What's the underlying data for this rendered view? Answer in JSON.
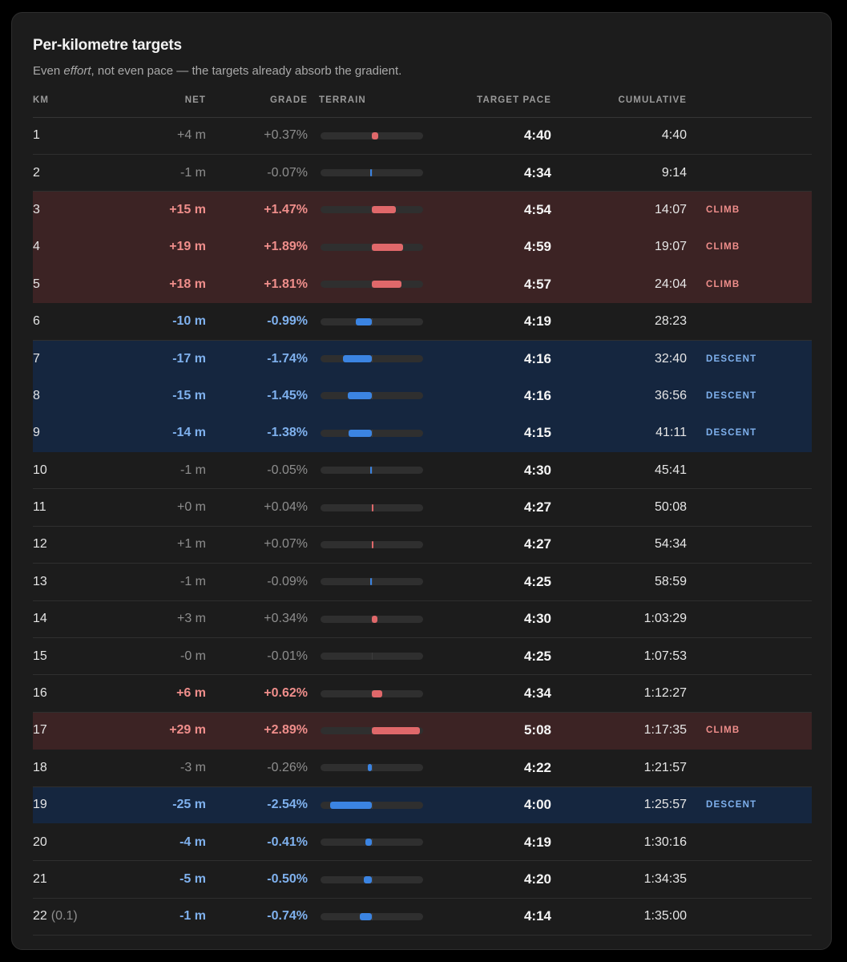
{
  "title": "Per-kilometre targets",
  "subtitle": {
    "before": "Even ",
    "emph": "effort",
    "after": ", not even pace — the targets already absorb the gradient."
  },
  "columns": {
    "km": "KM",
    "net": "NET",
    "grade": "GRADE",
    "terrain": "TERRAIN",
    "pace": "TARGET PACE",
    "cumulative": "CUMULATIVE"
  },
  "colors": {
    "climb_row_bg": "#3c2324",
    "descent_row_bg": "#15263f",
    "climb_bar": "#e0686a",
    "descent_bar": "#3b84e2",
    "climb_text": "#ef8e8b",
    "descent_text": "#7fb1ee"
  },
  "rows": [
    {
      "km": "1",
      "sub": "",
      "net": "+4 m",
      "grade": "+0.37%",
      "grade_value": 0.37,
      "pace": "4:40",
      "cumulative": "4:40",
      "tag": "",
      "kind": "flat"
    },
    {
      "km": "2",
      "sub": "",
      "net": "-1 m",
      "grade": "-0.07%",
      "grade_value": -0.07,
      "pace": "4:34",
      "cumulative": "9:14",
      "tag": "",
      "kind": "flat"
    },
    {
      "km": "3",
      "sub": "",
      "net": "+15 m",
      "grade": "+1.47%",
      "grade_value": 1.47,
      "pace": "4:54",
      "cumulative": "14:07",
      "tag": "CLIMB",
      "kind": "climb"
    },
    {
      "km": "4",
      "sub": "",
      "net": "+19 m",
      "grade": "+1.89%",
      "grade_value": 1.89,
      "pace": "4:59",
      "cumulative": "19:07",
      "tag": "CLIMB",
      "kind": "climb"
    },
    {
      "km": "5",
      "sub": "",
      "net": "+18 m",
      "grade": "+1.81%",
      "grade_value": 1.81,
      "pace": "4:57",
      "cumulative": "24:04",
      "tag": "CLIMB",
      "kind": "climb"
    },
    {
      "km": "6",
      "sub": "",
      "net": "-10 m",
      "grade": "-0.99%",
      "grade_value": -0.99,
      "pace": "4:19",
      "cumulative": "28:23",
      "tag": "",
      "kind": "down"
    },
    {
      "km": "7",
      "sub": "",
      "net": "-17 m",
      "grade": "-1.74%",
      "grade_value": -1.74,
      "pace": "4:16",
      "cumulative": "32:40",
      "tag": "DESCENT",
      "kind": "descent"
    },
    {
      "km": "8",
      "sub": "",
      "net": "-15 m",
      "grade": "-1.45%",
      "grade_value": -1.45,
      "pace": "4:16",
      "cumulative": "36:56",
      "tag": "DESCENT",
      "kind": "descent"
    },
    {
      "km": "9",
      "sub": "",
      "net": "-14 m",
      "grade": "-1.38%",
      "grade_value": -1.38,
      "pace": "4:15",
      "cumulative": "41:11",
      "tag": "DESCENT",
      "kind": "descent"
    },
    {
      "km": "10",
      "sub": "",
      "net": "-1 m",
      "grade": "-0.05%",
      "grade_value": -0.05,
      "pace": "4:30",
      "cumulative": "45:41",
      "tag": "",
      "kind": "flat"
    },
    {
      "km": "11",
      "sub": "",
      "net": "+0 m",
      "grade": "+0.04%",
      "grade_value": 0.04,
      "pace": "4:27",
      "cumulative": "50:08",
      "tag": "",
      "kind": "flat"
    },
    {
      "km": "12",
      "sub": "",
      "net": "+1 m",
      "grade": "+0.07%",
      "grade_value": 0.07,
      "pace": "4:27",
      "cumulative": "54:34",
      "tag": "",
      "kind": "flat"
    },
    {
      "km": "13",
      "sub": "",
      "net": "-1 m",
      "grade": "-0.09%",
      "grade_value": -0.09,
      "pace": "4:25",
      "cumulative": "58:59",
      "tag": "",
      "kind": "flat"
    },
    {
      "km": "14",
      "sub": "",
      "net": "+3 m",
      "grade": "+0.34%",
      "grade_value": 0.34,
      "pace": "4:30",
      "cumulative": "1:03:29",
      "tag": "",
      "kind": "flat"
    },
    {
      "km": "15",
      "sub": "",
      "net": "-0 m",
      "grade": "-0.01%",
      "grade_value": -0.01,
      "pace": "4:25",
      "cumulative": "1:07:53",
      "tag": "",
      "kind": "flat"
    },
    {
      "km": "16",
      "sub": "",
      "net": "+6 m",
      "grade": "+0.62%",
      "grade_value": 0.62,
      "pace": "4:34",
      "cumulative": "1:12:27",
      "tag": "",
      "kind": "up"
    },
    {
      "km": "17",
      "sub": "",
      "net": "+29 m",
      "grade": "+2.89%",
      "grade_value": 2.89,
      "pace": "5:08",
      "cumulative": "1:17:35",
      "tag": "CLIMB",
      "kind": "climb"
    },
    {
      "km": "18",
      "sub": "",
      "net": "-3 m",
      "grade": "-0.26%",
      "grade_value": -0.26,
      "pace": "4:22",
      "cumulative": "1:21:57",
      "tag": "",
      "kind": "flat"
    },
    {
      "km": "19",
      "sub": "",
      "net": "-25 m",
      "grade": "-2.54%",
      "grade_value": -2.54,
      "pace": "4:00",
      "cumulative": "1:25:57",
      "tag": "DESCENT",
      "kind": "descent"
    },
    {
      "km": "20",
      "sub": "",
      "net": "-4 m",
      "grade": "-0.41%",
      "grade_value": -0.41,
      "pace": "4:19",
      "cumulative": "1:30:16",
      "tag": "",
      "kind": "down"
    },
    {
      "km": "21",
      "sub": "",
      "net": "-5 m",
      "grade": "-0.50%",
      "grade_value": -0.5,
      "pace": "4:20",
      "cumulative": "1:34:35",
      "tag": "",
      "kind": "down"
    },
    {
      "km": "22",
      "sub": "(0.1)",
      "net": "-1 m",
      "grade": "-0.74%",
      "grade_value": -0.74,
      "pace": "4:14",
      "cumulative": "1:35:00",
      "tag": "",
      "kind": "down"
    }
  ]
}
